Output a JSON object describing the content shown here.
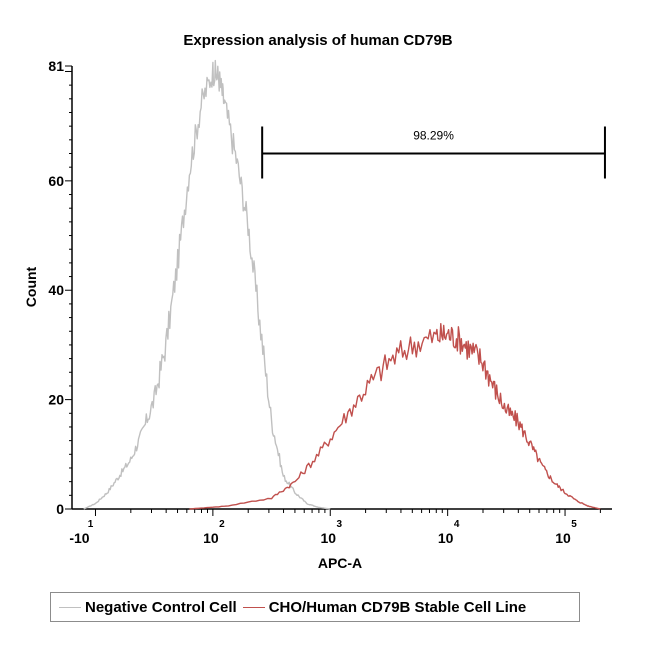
{
  "chart_data": {
    "type": "line",
    "title": "Expression analysis of human CD79B",
    "xlabel": "APC-A",
    "ylabel": "Count",
    "x_scale": "log",
    "x_ticks": [
      {
        "base": "-10",
        "exp": "1"
      },
      {
        "base": "10",
        "exp": "2"
      },
      {
        "base": "10",
        "exp": "3"
      },
      {
        "base": "10",
        "exp": "4"
      },
      {
        "base": "10",
        "exp": "5"
      }
    ],
    "y_ticks": [
      "0",
      "20",
      "40",
      "60",
      "81"
    ],
    "ylim": [
      0,
      81
    ],
    "gate": {
      "label": "98.29%",
      "x_start": 2.42,
      "x_end": 5.34,
      "y": 65
    },
    "series": [
      {
        "name": "Negative Control Cell",
        "color": "#c0c0c0",
        "points": [
          [
            0.9,
            0
          ],
          [
            1.0,
            1
          ],
          [
            1.1,
            3
          ],
          [
            1.2,
            6
          ],
          [
            1.3,
            9
          ],
          [
            1.4,
            14
          ],
          [
            1.5,
            20
          ],
          [
            1.6,
            30
          ],
          [
            1.7,
            45
          ],
          [
            1.8,
            62
          ],
          [
            1.9,
            74
          ],
          [
            2.0,
            80
          ],
          [
            2.05,
            79
          ],
          [
            2.1,
            74
          ],
          [
            2.2,
            64
          ],
          [
            2.3,
            52
          ],
          [
            2.4,
            34
          ],
          [
            2.5,
            16
          ],
          [
            2.6,
            6
          ],
          [
            2.7,
            3
          ],
          [
            2.8,
            1
          ],
          [
            2.9,
            0.3
          ],
          [
            3.0,
            0
          ]
        ]
      },
      {
        "name": "CHO/Human CD79B Stable Cell Line",
        "color": "#c0504d",
        "points": [
          [
            1.8,
            0
          ],
          [
            2.1,
            0.5
          ],
          [
            2.5,
            2
          ],
          [
            2.7,
            5
          ],
          [
            2.9,
            10
          ],
          [
            3.1,
            16
          ],
          [
            3.3,
            22
          ],
          [
            3.5,
            27
          ],
          [
            3.7,
            30
          ],
          [
            3.9,
            31.5
          ],
          [
            4.0,
            32
          ],
          [
            4.1,
            31
          ],
          [
            4.2,
            29
          ],
          [
            4.3,
            27
          ],
          [
            4.4,
            22
          ],
          [
            4.5,
            18
          ],
          [
            4.6,
            16
          ],
          [
            4.7,
            12
          ],
          [
            4.8,
            8
          ],
          [
            4.9,
            5
          ],
          [
            5.0,
            3
          ],
          [
            5.1,
            1.5
          ],
          [
            5.2,
            0.5
          ],
          [
            5.3,
            0
          ]
        ]
      }
    ]
  }
}
